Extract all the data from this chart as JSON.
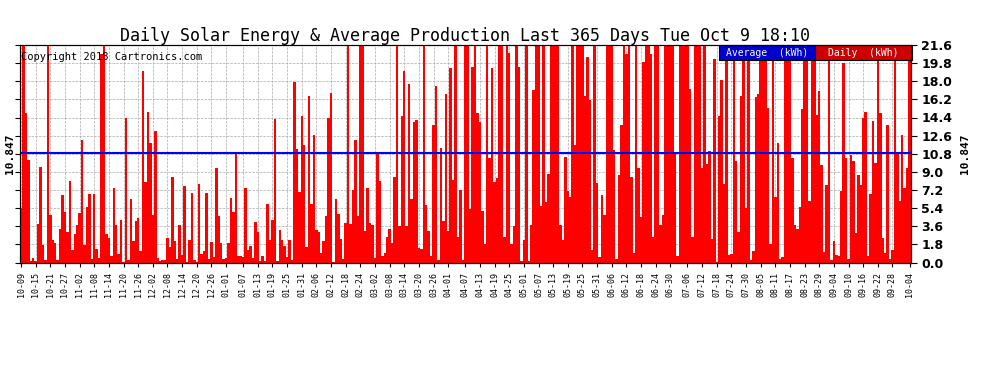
{
  "title": "Daily Solar Energy & Average Production Last 365 Days Tue Oct 9 18:10",
  "copyright": "Copyright 2018 Cartronics.com",
  "average_value": 10.847,
  "average_label": "10.847",
  "ylim": [
    0,
    21.6
  ],
  "yticks": [
    0.0,
    1.8,
    3.6,
    5.4,
    7.2,
    9.0,
    10.8,
    12.6,
    14.4,
    16.2,
    18.0,
    19.8,
    21.6
  ],
  "bar_color": "#FF0000",
  "avg_line_color": "#0000FF",
  "background_color": "#FFFFFF",
  "grid_color": "#AAAAAA",
  "title_fontsize": 12,
  "legend_avg_color": "#0000CC",
  "legend_daily_color": "#CC0000",
  "x_labels": [
    "10-09",
    "10-15",
    "10-21",
    "10-27",
    "11-02",
    "11-08",
    "11-14",
    "11-20",
    "11-26",
    "12-02",
    "12-08",
    "12-14",
    "12-20",
    "12-26",
    "01-01",
    "01-07",
    "01-13",
    "01-19",
    "01-25",
    "01-31",
    "02-06",
    "02-12",
    "02-18",
    "02-24",
    "03-02",
    "03-08",
    "03-14",
    "03-20",
    "03-26",
    "04-01",
    "04-07",
    "04-13",
    "04-19",
    "04-25",
    "05-01",
    "05-07",
    "05-13",
    "05-19",
    "05-25",
    "05-31",
    "06-06",
    "06-12",
    "06-18",
    "06-24",
    "06-30",
    "07-06",
    "07-12",
    "07-18",
    "07-24",
    "07-30",
    "08-05",
    "08-11",
    "08-17",
    "08-23",
    "08-29",
    "09-04",
    "09-10",
    "09-16",
    "09-22",
    "09-28",
    "10-04"
  ],
  "num_days": 365,
  "seed": 42
}
